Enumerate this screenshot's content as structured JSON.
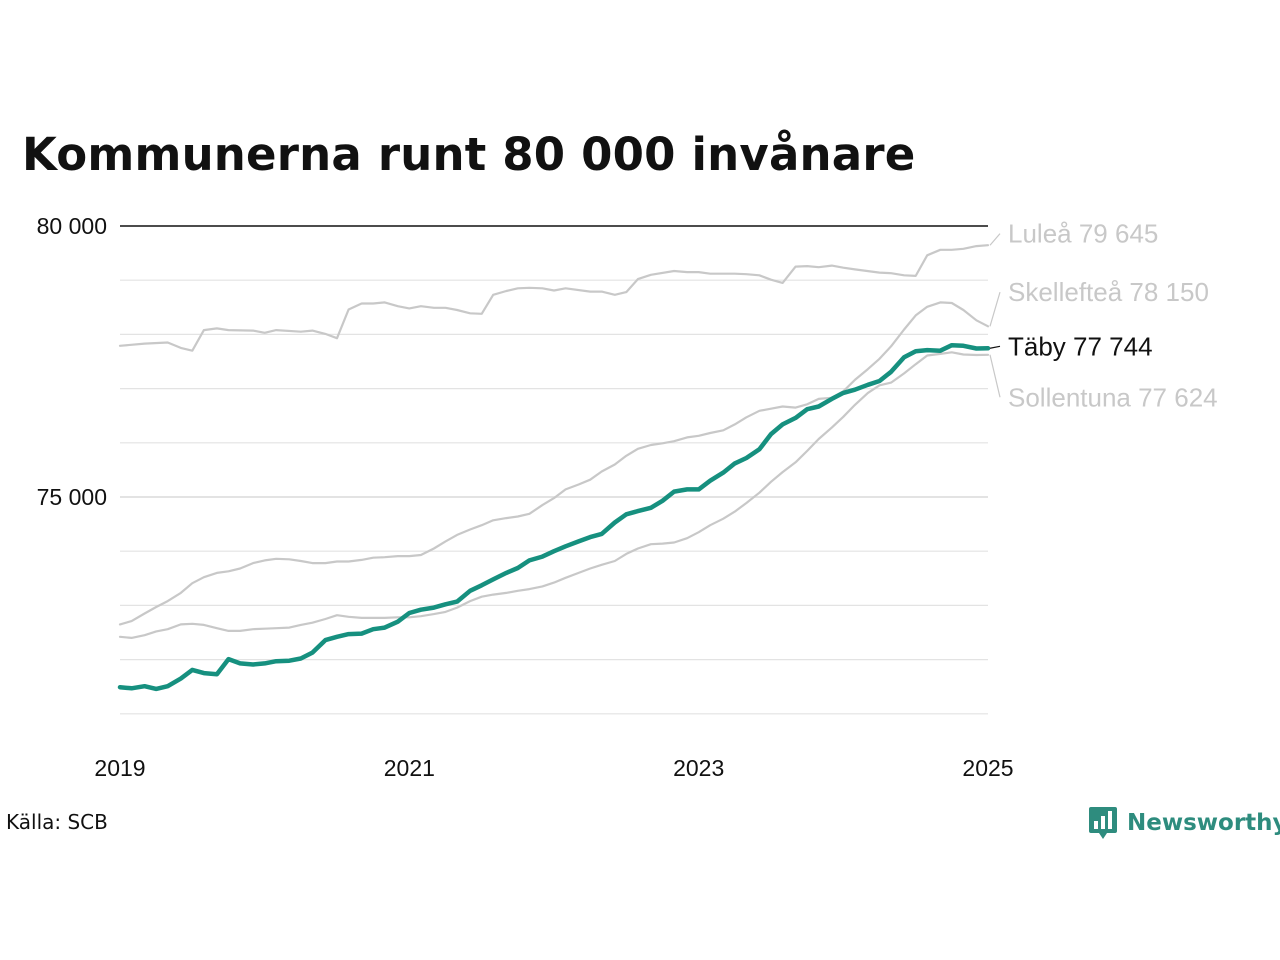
{
  "title": "Kommunerna runt 80 000 invånare",
  "source": "Källa: SCB",
  "brand": {
    "name": "Newsworthy",
    "icon": "bar-chart-speech-bubble-icon"
  },
  "colors": {
    "highlight": "#16907f",
    "muted": "#c8c8c8",
    "grid": "#e3e3e3",
    "top_line": "#111111",
    "brand": "#2e8c7e"
  },
  "chart_data": {
    "type": "line",
    "title": "Kommunerna runt 80 000 invånare",
    "xlim": [
      2019,
      2025
    ],
    "ylim": [
      71000,
      80000
    ],
    "grid": true,
    "x_ticks": [
      {
        "value": 2019,
        "label": "2019"
      },
      {
        "value": 2021,
        "label": "2021"
      },
      {
        "value": 2023,
        "label": "2023"
      },
      {
        "value": 2025,
        "label": "2025"
      }
    ],
    "y_ticks": [
      {
        "value": 75000,
        "label": "75 000"
      },
      {
        "value": 80000,
        "label": "80 000"
      }
    ],
    "series": [
      {
        "name": "Luleå",
        "label": "Luleå 79 645",
        "highlight": false,
        "label_y": 79860,
        "points": [
          [
            2019,
            77790
          ],
          [
            2019.17,
            77830
          ],
          [
            2019.33,
            77850
          ],
          [
            2019.42,
            77750
          ],
          [
            2019.5,
            77700
          ],
          [
            2019.58,
            78080
          ],
          [
            2019.67,
            78110
          ],
          [
            2019.75,
            78080
          ],
          [
            2019.92,
            78070
          ],
          [
            2020.0,
            78030
          ],
          [
            2020.08,
            78080
          ],
          [
            2020.25,
            78050
          ],
          [
            2020.33,
            78070
          ],
          [
            2020.42,
            78010
          ],
          [
            2020.5,
            77930
          ],
          [
            2020.58,
            78460
          ],
          [
            2020.67,
            78570
          ],
          [
            2020.75,
            78570
          ],
          [
            2020.83,
            78590
          ],
          [
            2020.92,
            78520
          ],
          [
            2021.0,
            78480
          ],
          [
            2021.08,
            78520
          ],
          [
            2021.17,
            78490
          ],
          [
            2021.25,
            78490
          ],
          [
            2021.33,
            78450
          ],
          [
            2021.42,
            78390
          ],
          [
            2021.5,
            78380
          ],
          [
            2021.58,
            78730
          ],
          [
            2021.67,
            78800
          ],
          [
            2021.75,
            78850
          ],
          [
            2021.83,
            78860
          ],
          [
            2021.92,
            78850
          ],
          [
            2022.0,
            78810
          ],
          [
            2022.08,
            78850
          ],
          [
            2022.25,
            78790
          ],
          [
            2022.33,
            78790
          ],
          [
            2022.42,
            78730
          ],
          [
            2022.5,
            78780
          ],
          [
            2022.58,
            79020
          ],
          [
            2022.67,
            79100
          ],
          [
            2022.83,
            79170
          ],
          [
            2022.92,
            79150
          ],
          [
            2023.0,
            79150
          ],
          [
            2023.08,
            79120
          ],
          [
            2023.17,
            79120
          ],
          [
            2023.25,
            79120
          ],
          [
            2023.33,
            79110
          ],
          [
            2023.42,
            79090
          ],
          [
            2023.5,
            79010
          ],
          [
            2023.58,
            78950
          ],
          [
            2023.67,
            79250
          ],
          [
            2023.75,
            79260
          ],
          [
            2023.83,
            79240
          ],
          [
            2023.92,
            79270
          ],
          [
            2024.0,
            79230
          ],
          [
            2024.08,
            79200
          ],
          [
            2024.25,
            79140
          ],
          [
            2024.33,
            79130
          ],
          [
            2024.42,
            79090
          ],
          [
            2024.5,
            79080
          ],
          [
            2024.58,
            79460
          ],
          [
            2024.67,
            79560
          ],
          [
            2024.75,
            79560
          ],
          [
            2024.83,
            79580
          ],
          [
            2024.92,
            79630
          ],
          [
            2025.0,
            79645
          ]
        ]
      },
      {
        "name": "Skellefteå",
        "label": "Skellefteå 78 150",
        "highlight": false,
        "label_y": 78780,
        "points": [
          [
            2019,
            72650
          ],
          [
            2019.08,
            72710
          ],
          [
            2019.17,
            72850
          ],
          [
            2019.25,
            72970
          ],
          [
            2019.33,
            73080
          ],
          [
            2019.42,
            73230
          ],
          [
            2019.5,
            73410
          ],
          [
            2019.58,
            73520
          ],
          [
            2019.67,
            73600
          ],
          [
            2019.75,
            73630
          ],
          [
            2019.83,
            73680
          ],
          [
            2019.92,
            73780
          ],
          [
            2020.0,
            73830
          ],
          [
            2020.08,
            73860
          ],
          [
            2020.17,
            73850
          ],
          [
            2020.25,
            73820
          ],
          [
            2020.33,
            73780
          ],
          [
            2020.42,
            73780
          ],
          [
            2020.5,
            73810
          ],
          [
            2020.58,
            73810
          ],
          [
            2020.67,
            73840
          ],
          [
            2020.75,
            73880
          ],
          [
            2020.83,
            73890
          ],
          [
            2020.92,
            73910
          ],
          [
            2021.0,
            73910
          ],
          [
            2021.08,
            73930
          ],
          [
            2021.17,
            74050
          ],
          [
            2021.25,
            74180
          ],
          [
            2021.33,
            74300
          ],
          [
            2021.42,
            74400
          ],
          [
            2021.5,
            74480
          ],
          [
            2021.58,
            74570
          ],
          [
            2021.67,
            74610
          ],
          [
            2021.75,
            74640
          ],
          [
            2021.83,
            74690
          ],
          [
            2021.92,
            74850
          ],
          [
            2022.0,
            74980
          ],
          [
            2022.08,
            75140
          ],
          [
            2022.17,
            75230
          ],
          [
            2022.25,
            75320
          ],
          [
            2022.33,
            75470
          ],
          [
            2022.42,
            75600
          ],
          [
            2022.5,
            75760
          ],
          [
            2022.58,
            75890
          ],
          [
            2022.67,
            75960
          ],
          [
            2022.75,
            75990
          ],
          [
            2022.83,
            76030
          ],
          [
            2022.92,
            76100
          ],
          [
            2023.0,
            76130
          ],
          [
            2023.08,
            76180
          ],
          [
            2023.17,
            76230
          ],
          [
            2023.25,
            76340
          ],
          [
            2023.33,
            76470
          ],
          [
            2023.42,
            76590
          ],
          [
            2023.5,
            76630
          ],
          [
            2023.58,
            76670
          ],
          [
            2023.67,
            76650
          ],
          [
            2023.75,
            76710
          ],
          [
            2023.83,
            76810
          ],
          [
            2023.92,
            76830
          ],
          [
            2024.0,
            76950
          ],
          [
            2024.08,
            77160
          ],
          [
            2024.17,
            77360
          ],
          [
            2024.25,
            77550
          ],
          [
            2024.33,
            77780
          ],
          [
            2024.42,
            78090
          ],
          [
            2024.5,
            78350
          ],
          [
            2024.58,
            78510
          ],
          [
            2024.67,
            78590
          ],
          [
            2024.75,
            78580
          ],
          [
            2024.83,
            78450
          ],
          [
            2024.92,
            78260
          ],
          [
            2025.0,
            78150
          ]
        ]
      },
      {
        "name": "Sollentuna",
        "label": "Sollentuna 77 624",
        "highlight": false,
        "label_y": 76840,
        "points": [
          [
            2019,
            72420
          ],
          [
            2019.08,
            72400
          ],
          [
            2019.17,
            72450
          ],
          [
            2019.25,
            72520
          ],
          [
            2019.33,
            72560
          ],
          [
            2019.42,
            72650
          ],
          [
            2019.5,
            72660
          ],
          [
            2019.58,
            72640
          ],
          [
            2019.67,
            72580
          ],
          [
            2019.75,
            72530
          ],
          [
            2019.83,
            72530
          ],
          [
            2019.92,
            72560
          ],
          [
            2020.0,
            72570
          ],
          [
            2020.08,
            72580
          ],
          [
            2020.17,
            72590
          ],
          [
            2020.25,
            72640
          ],
          [
            2020.33,
            72680
          ],
          [
            2020.42,
            72750
          ],
          [
            2020.5,
            72820
          ],
          [
            2020.58,
            72790
          ],
          [
            2020.67,
            72770
          ],
          [
            2020.75,
            72770
          ],
          [
            2020.83,
            72770
          ],
          [
            2020.92,
            72780
          ],
          [
            2021.0,
            72780
          ],
          [
            2021.08,
            72800
          ],
          [
            2021.17,
            72840
          ],
          [
            2021.25,
            72880
          ],
          [
            2021.33,
            72960
          ],
          [
            2021.42,
            73080
          ],
          [
            2021.5,
            73160
          ],
          [
            2021.58,
            73200
          ],
          [
            2021.67,
            73230
          ],
          [
            2021.75,
            73270
          ],
          [
            2021.83,
            73300
          ],
          [
            2021.92,
            73350
          ],
          [
            2022.0,
            73420
          ],
          [
            2022.08,
            73510
          ],
          [
            2022.17,
            73600
          ],
          [
            2022.25,
            73680
          ],
          [
            2022.33,
            73750
          ],
          [
            2022.42,
            73820
          ],
          [
            2022.5,
            73950
          ],
          [
            2022.58,
            74050
          ],
          [
            2022.67,
            74130
          ],
          [
            2022.75,
            74140
          ],
          [
            2022.83,
            74160
          ],
          [
            2022.92,
            74240
          ],
          [
            2023.0,
            74350
          ],
          [
            2023.08,
            74480
          ],
          [
            2023.17,
            74600
          ],
          [
            2023.25,
            74730
          ],
          [
            2023.33,
            74890
          ],
          [
            2023.42,
            75080
          ],
          [
            2023.5,
            75280
          ],
          [
            2023.58,
            75460
          ],
          [
            2023.67,
            75640
          ],
          [
            2023.75,
            75850
          ],
          [
            2023.83,
            76070
          ],
          [
            2023.92,
            76280
          ],
          [
            2024.0,
            76480
          ],
          [
            2024.08,
            76700
          ],
          [
            2024.17,
            76920
          ],
          [
            2024.25,
            77060
          ],
          [
            2024.33,
            77110
          ],
          [
            2024.42,
            77280
          ],
          [
            2024.5,
            77450
          ],
          [
            2024.58,
            77610
          ],
          [
            2024.67,
            77640
          ],
          [
            2024.75,
            77670
          ],
          [
            2024.83,
            77630
          ],
          [
            2024.92,
            77620
          ],
          [
            2025.0,
            77624
          ]
        ]
      },
      {
        "name": "Täby",
        "label": "Täby 77 744",
        "highlight": true,
        "label_y": 77780,
        "points": [
          [
            2019,
            71490
          ],
          [
            2019.08,
            71470
          ],
          [
            2019.17,
            71510
          ],
          [
            2019.25,
            71460
          ],
          [
            2019.33,
            71510
          ],
          [
            2019.42,
            71650
          ],
          [
            2019.5,
            71810
          ],
          [
            2019.58,
            71750
          ],
          [
            2019.67,
            71730
          ],
          [
            2019.75,
            72010
          ],
          [
            2019.83,
            71930
          ],
          [
            2019.92,
            71910
          ],
          [
            2020.0,
            71930
          ],
          [
            2020.08,
            71970
          ],
          [
            2020.17,
            71980
          ],
          [
            2020.25,
            72020
          ],
          [
            2020.33,
            72130
          ],
          [
            2020.42,
            72360
          ],
          [
            2020.5,
            72420
          ],
          [
            2020.58,
            72470
          ],
          [
            2020.67,
            72480
          ],
          [
            2020.75,
            72560
          ],
          [
            2020.83,
            72590
          ],
          [
            2020.92,
            72700
          ],
          [
            2021.0,
            72860
          ],
          [
            2021.08,
            72920
          ],
          [
            2021.17,
            72960
          ],
          [
            2021.25,
            73020
          ],
          [
            2021.33,
            73070
          ],
          [
            2021.42,
            73270
          ],
          [
            2021.5,
            73370
          ],
          [
            2021.58,
            73480
          ],
          [
            2021.67,
            73600
          ],
          [
            2021.75,
            73690
          ],
          [
            2021.83,
            73830
          ],
          [
            2021.92,
            73900
          ],
          [
            2022.0,
            74000
          ],
          [
            2022.08,
            74090
          ],
          [
            2022.17,
            74180
          ],
          [
            2022.25,
            74260
          ],
          [
            2022.33,
            74320
          ],
          [
            2022.42,
            74530
          ],
          [
            2022.5,
            74680
          ],
          [
            2022.58,
            74740
          ],
          [
            2022.67,
            74800
          ],
          [
            2022.75,
            74930
          ],
          [
            2022.83,
            75100
          ],
          [
            2022.92,
            75140
          ],
          [
            2023.0,
            75140
          ],
          [
            2023.08,
            75300
          ],
          [
            2023.17,
            75450
          ],
          [
            2023.25,
            75620
          ],
          [
            2023.33,
            75720
          ],
          [
            2023.42,
            75880
          ],
          [
            2023.5,
            76160
          ],
          [
            2023.58,
            76340
          ],
          [
            2023.67,
            76460
          ],
          [
            2023.75,
            76620
          ],
          [
            2023.83,
            76670
          ],
          [
            2023.92,
            76810
          ],
          [
            2024.0,
            76920
          ],
          [
            2024.08,
            76980
          ],
          [
            2024.17,
            77070
          ],
          [
            2024.25,
            77140
          ],
          [
            2024.33,
            77310
          ],
          [
            2024.42,
            77580
          ],
          [
            2024.5,
            77690
          ],
          [
            2024.58,
            77710
          ],
          [
            2024.67,
            77700
          ],
          [
            2024.75,
            77800
          ],
          [
            2024.83,
            77790
          ],
          [
            2024.92,
            77740
          ],
          [
            2025.0,
            77744
          ]
        ]
      }
    ]
  }
}
